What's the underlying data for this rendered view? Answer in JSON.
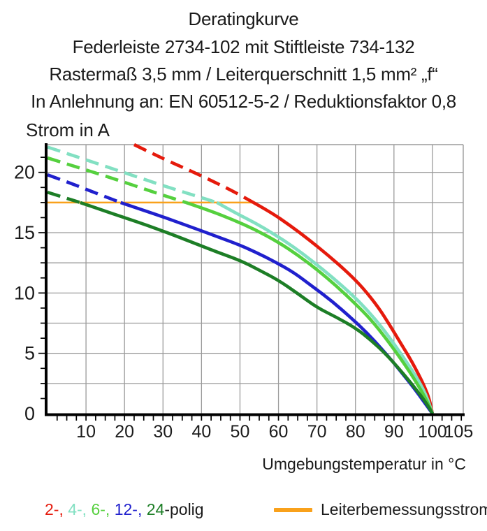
{
  "title_lines": [
    "Deratingkurve",
    "Federleiste 2734-102 mit Stiftleiste 734-132",
    "Rastermaß 3,5 mm / Leiterquerschnitt 1,5 mm² „f“",
    "In Anlehnung an: EN 60512-5-2 / Reduktionsfaktor 0,8"
  ],
  "y_axis_title": "Strom in A",
  "x_axis_title": "Umgebungstemperatur in °C",
  "legend": {
    "poles_parts": [
      {
        "text": "2-, ",
        "color": "#e51a0c"
      },
      {
        "text": "4-, ",
        "color": "#82e0c2"
      },
      {
        "text": "6-, ",
        "color": "#55d03e"
      },
      {
        "text": "12-, ",
        "color": "#2020cd"
      },
      {
        "text": "24",
        "color": "#1d7e26"
      },
      {
        "text": "-polig",
        "color": "#1a1a1a"
      }
    ],
    "rated_current_label": "Leiterbemessungsstrom",
    "rated_current_color": "#f9a11b"
  },
  "colors": {
    "grid": "#9b9b9b",
    "axis": "#000000",
    "text": "#1b1b1b"
  },
  "chart_data": {
    "type": "line",
    "title": "Deratingkurve",
    "xlabel": "Umgebungstemperatur in °C",
    "ylabel": "Strom in A",
    "xlim": [
      0,
      108
    ],
    "ylim": [
      0,
      22.3
    ],
    "x_ticks": [
      10,
      20,
      30,
      40,
      50,
      60,
      70,
      80,
      90,
      100,
      105
    ],
    "y_ticks": [
      0,
      5,
      10,
      15,
      20
    ],
    "x_minor_tick_step": 2.5,
    "y_minor_tick_step": 1.25,
    "x_gridline_step": 10,
    "y_gridline_step": 2.5,
    "grid": true,
    "legend_position": "bottom",
    "line_style_note": "dashed above rated current line, solid below",
    "rated_current": {
      "value": 17.5,
      "x_start": 0,
      "x_end": 53.5,
      "label": "Leiterbemessungsstrom",
      "color": "#f9a11b"
    },
    "series": [
      {
        "name": "2-polig",
        "color": "#e51a0c",
        "dashed_points": [
          [
            22.5,
            22.3
          ],
          [
            27,
            21.6
          ],
          [
            32,
            20.85
          ],
          [
            38,
            20.0
          ],
          [
            44,
            19.1
          ],
          [
            49,
            18.3
          ],
          [
            53.5,
            17.5
          ]
        ],
        "solid_points": [
          [
            53.5,
            17.5
          ],
          [
            58,
            16.7
          ],
          [
            63,
            15.6
          ],
          [
            68,
            14.4
          ],
          [
            73,
            13.1
          ],
          [
            78,
            11.7
          ],
          [
            82,
            10.4
          ],
          [
            86,
            8.8
          ],
          [
            89,
            7.3
          ],
          [
            92,
            5.7
          ],
          [
            94.5,
            4.4
          ],
          [
            96.5,
            3.2
          ],
          [
            98,
            2.2
          ],
          [
            99.2,
            1.2
          ],
          [
            100,
            0
          ]
        ]
      },
      {
        "name": "4-polig",
        "color": "#82e0c2",
        "dashed_points": [
          [
            0,
            22.1
          ],
          [
            8,
            21.25
          ],
          [
            16,
            20.4
          ],
          [
            24,
            19.55
          ],
          [
            32,
            18.7
          ],
          [
            39,
            18.0
          ],
          [
            44,
            17.5
          ]
        ],
        "solid_points": [
          [
            44,
            17.5
          ],
          [
            49,
            16.6
          ],
          [
            54,
            15.8
          ],
          [
            59,
            14.85
          ],
          [
            64,
            13.8
          ],
          [
            69,
            12.6
          ],
          [
            74,
            11.3
          ],
          [
            79,
            9.9
          ],
          [
            83,
            8.6
          ],
          [
            87,
            7.1
          ],
          [
            90,
            5.8
          ],
          [
            93,
            4.4
          ],
          [
            95.5,
            3.2
          ],
          [
            97.5,
            2.1
          ],
          [
            99,
            1.0
          ],
          [
            100,
            0
          ]
        ]
      },
      {
        "name": "6-polig",
        "color": "#55d03e",
        "dashed_points": [
          [
            0,
            21.2
          ],
          [
            8,
            20.4
          ],
          [
            16,
            19.6
          ],
          [
            24,
            18.75
          ],
          [
            31,
            18.0
          ],
          [
            36,
            17.5
          ]
        ],
        "solid_points": [
          [
            36,
            17.5
          ],
          [
            42,
            16.85
          ],
          [
            48,
            16.1
          ],
          [
            54,
            15.25
          ],
          [
            60,
            14.2
          ],
          [
            65,
            13.15
          ],
          [
            70,
            11.95
          ],
          [
            75,
            10.6
          ],
          [
            80,
            9.1
          ],
          [
            84,
            7.8
          ],
          [
            88,
            6.2
          ],
          [
            91,
            4.9
          ],
          [
            94,
            3.5
          ],
          [
            96,
            2.5
          ],
          [
            98,
            1.4
          ],
          [
            99.3,
            0.5
          ],
          [
            100,
            0
          ]
        ]
      },
      {
        "name": "12-polig",
        "color": "#2020cd",
        "dashed_points": [
          [
            0,
            19.8
          ],
          [
            6,
            19.1
          ],
          [
            12,
            18.35
          ],
          [
            19,
            17.5
          ]
        ],
        "solid_points": [
          [
            19,
            17.5
          ],
          [
            25,
            16.85
          ],
          [
            31,
            16.2
          ],
          [
            37,
            15.5
          ],
          [
            43,
            14.8
          ],
          [
            49,
            14.1
          ],
          [
            54,
            13.4
          ],
          [
            59,
            12.6
          ],
          [
            64,
            11.7
          ],
          [
            69,
            10.5
          ],
          [
            74,
            9.3
          ],
          [
            79,
            7.9
          ],
          [
            83,
            6.7
          ],
          [
            87,
            5.3
          ],
          [
            90,
            4.2
          ],
          [
            93,
            3.0
          ],
          [
            95.5,
            2.0
          ],
          [
            97.5,
            1.1
          ],
          [
            99,
            0.45
          ],
          [
            100,
            0
          ]
        ]
      },
      {
        "name": "24-polig",
        "color": "#1d7e26",
        "dashed_points": [
          [
            0,
            18.35
          ],
          [
            4,
            17.95
          ],
          [
            8.5,
            17.5
          ]
        ],
        "solid_points": [
          [
            8.5,
            17.5
          ],
          [
            14,
            16.9
          ],
          [
            20,
            16.25
          ],
          [
            26,
            15.6
          ],
          [
            32,
            14.9
          ],
          [
            38,
            14.15
          ],
          [
            44,
            13.4
          ],
          [
            50,
            12.7
          ],
          [
            55,
            11.9
          ],
          [
            60,
            11.05
          ],
          [
            65,
            9.95
          ],
          [
            70,
            8.8
          ],
          [
            75,
            8.0
          ],
          [
            80,
            7.1
          ],
          [
            84,
            6.1
          ],
          [
            88,
            4.9
          ],
          [
            91,
            3.85
          ],
          [
            94,
            2.7
          ],
          [
            96,
            1.9
          ],
          [
            98,
            1.05
          ],
          [
            99.3,
            0.4
          ],
          [
            100,
            0
          ]
        ]
      }
    ]
  }
}
